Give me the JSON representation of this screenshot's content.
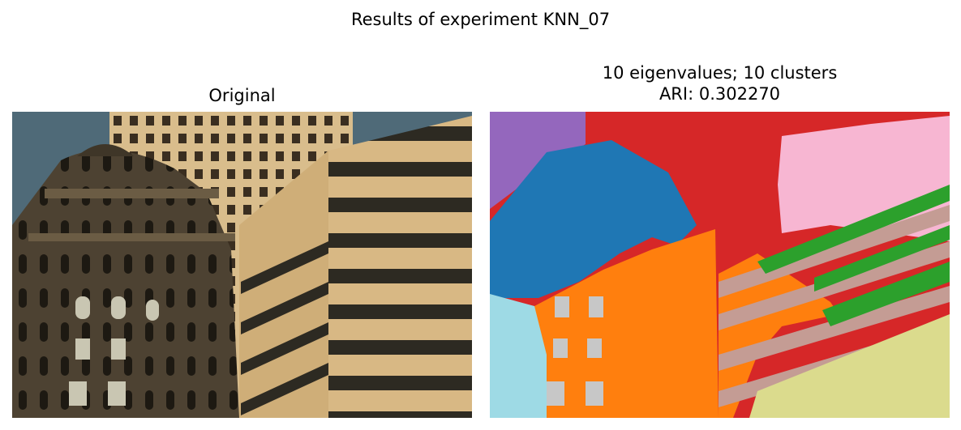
{
  "figure": {
    "suptitle": "Results of experiment KNN_07"
  },
  "left_panel": {
    "title": "Original",
    "image_description_icon": "photo-city-buildings"
  },
  "right_panel": {
    "title_line1": "10 eigenvalues; 10 clusters",
    "title_line2": "ARI: 0.302270",
    "cluster_colors": [
      "#1f77b4",
      "#ff7f0e",
      "#2ca02c",
      "#d62728",
      "#9467bd",
      "#c49c94",
      "#e377c2",
      "#bcbd22",
      "#9edae5",
      "#c7c7c7",
      "#f7b6d2",
      "#dbdb8d"
    ]
  }
}
